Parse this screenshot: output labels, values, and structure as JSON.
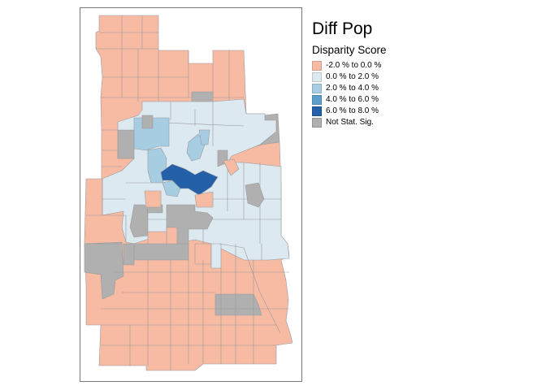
{
  "legend": {
    "title": "Diff Pop",
    "subtitle": "Disparity Score",
    "items": [
      {
        "label": "-2.0 % to 0.0 %",
        "color": "#f7bba4"
      },
      {
        "label": "0.0 % to 2.0 %",
        "color": "#dce9f1"
      },
      {
        "label": "2.0 % to 4.0 %",
        "color": "#a7cde3"
      },
      {
        "label": "4.0 % to 6.0 %",
        "color": "#5c9fcb"
      },
      {
        "label": "6.0 % to 8.0 %",
        "color": "#2460a7"
      },
      {
        "label": "Not Stat. Sig.",
        "color": "#b0b0b0"
      }
    ]
  },
  "map": {
    "border_color": "#888888",
    "frame_color": "#777777"
  }
}
